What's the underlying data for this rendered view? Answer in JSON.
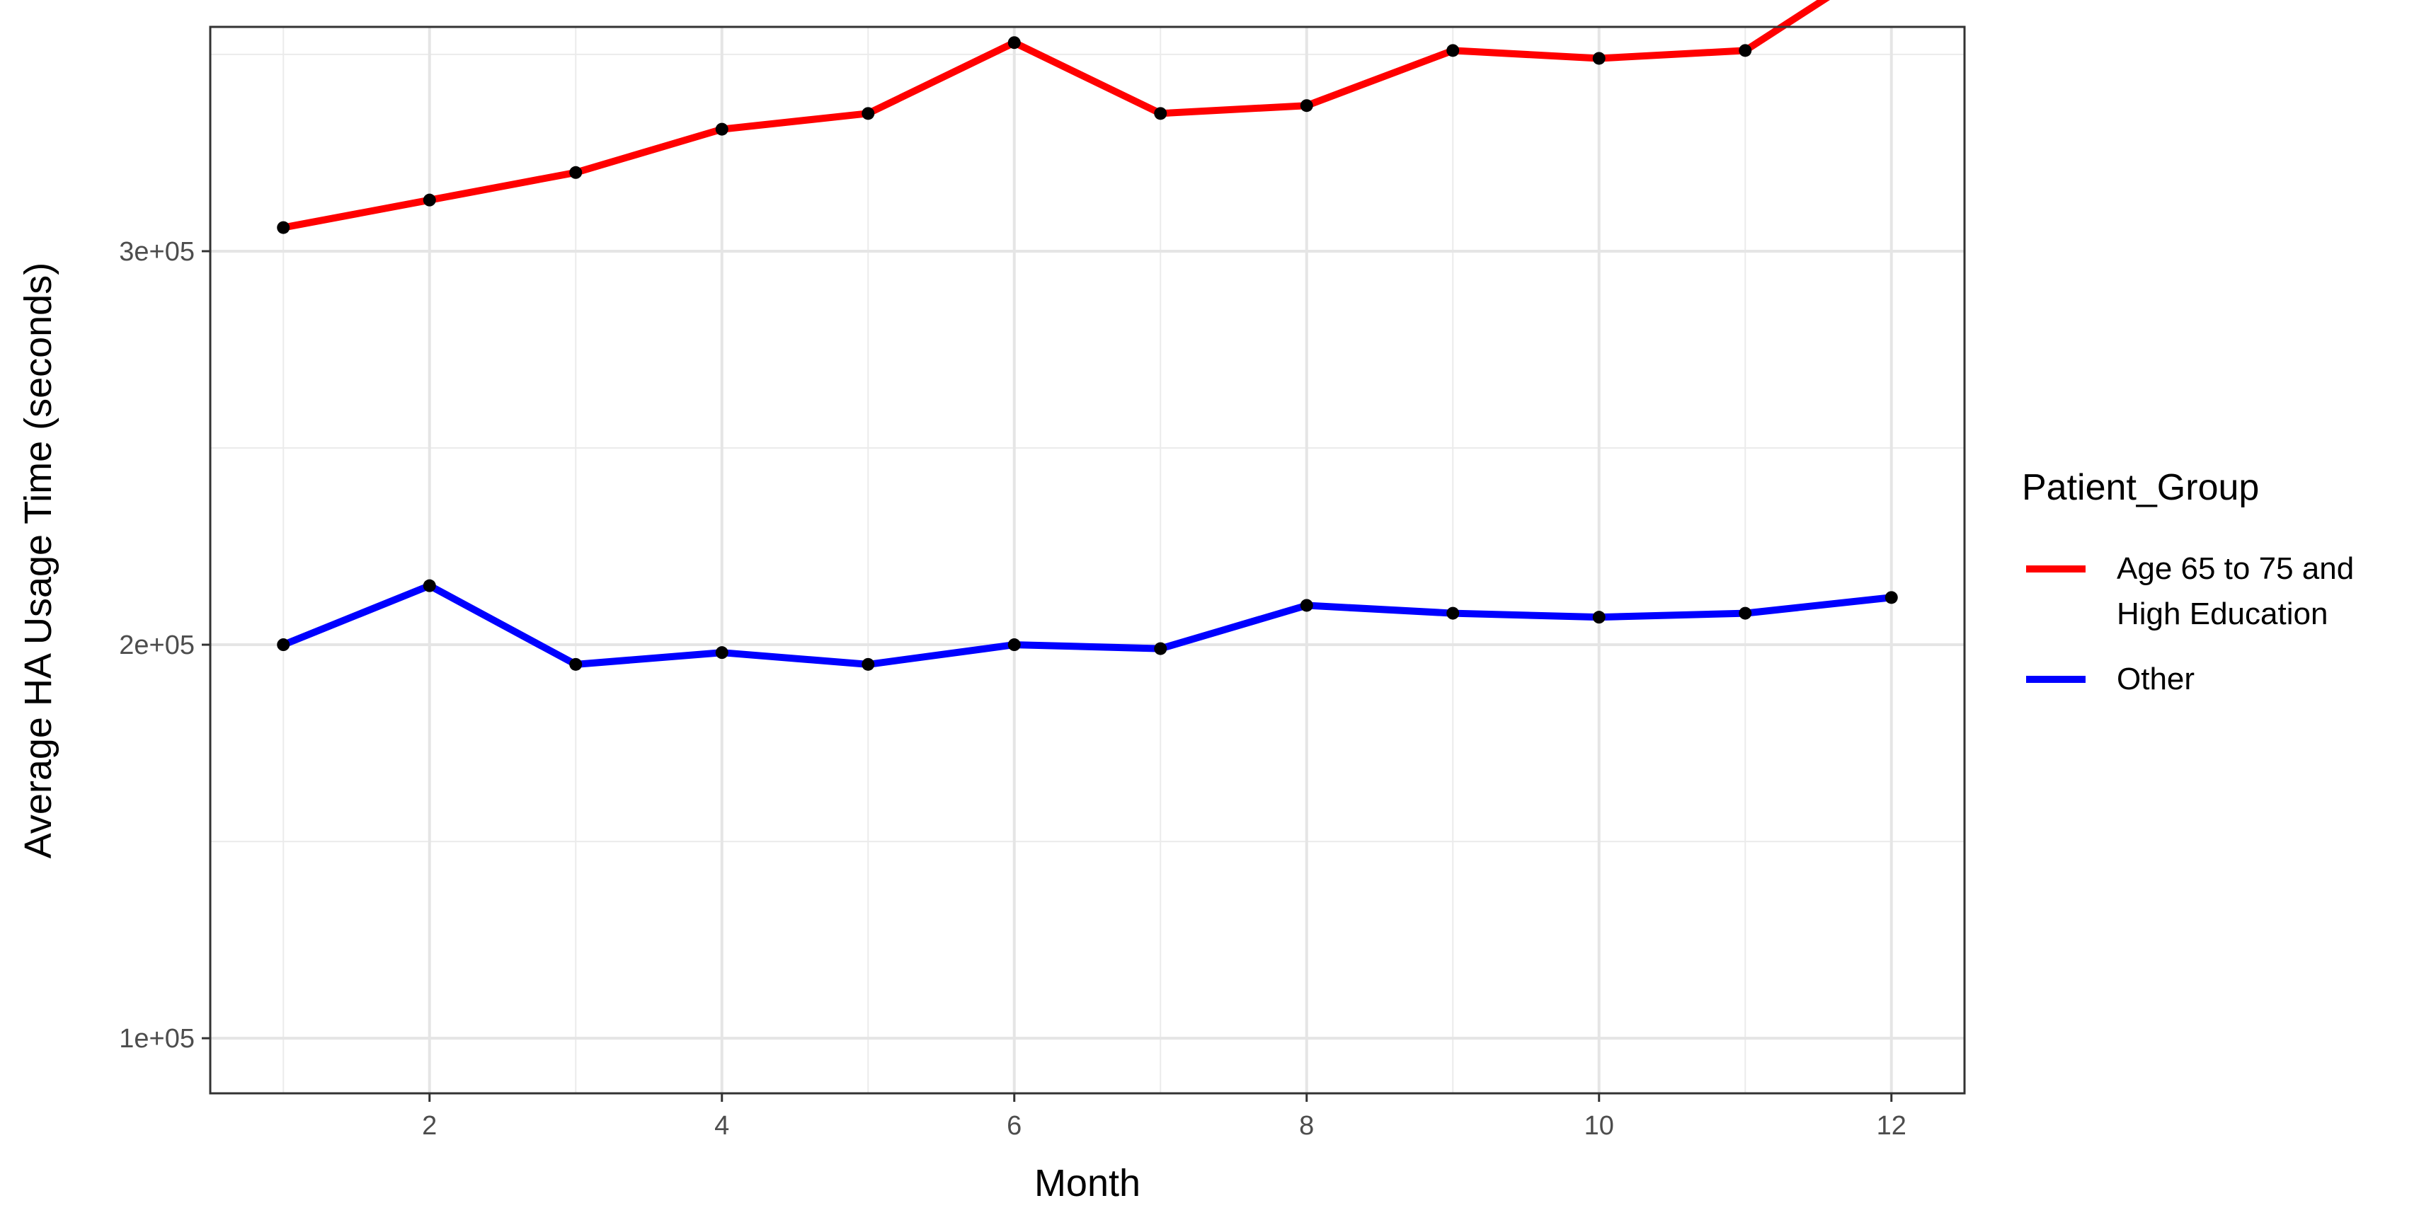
{
  "chart_data": {
    "type": "line",
    "xlabel": "Month",
    "ylabel": "Average HA Usage Time (seconds)",
    "x": [
      1,
      2,
      3,
      4,
      5,
      6,
      7,
      8,
      9,
      10,
      11,
      12
    ],
    "xlim": [
      0.5,
      12.5
    ],
    "ylim": [
      86000,
      357000
    ],
    "x_ticks": [
      2,
      4,
      6,
      8,
      10,
      12
    ],
    "x_tick_labels": [
      "2",
      "4",
      "6",
      "8",
      "10",
      "12"
    ],
    "y_ticks": [
      100000,
      200000,
      300000
    ],
    "y_tick_labels": [
      "1e+05",
      "2e+05",
      "3e+05"
    ],
    "grid": true,
    "point_color": "#000000",
    "legend": {
      "title": "Patient_Group",
      "position": "right",
      "entries": [
        {
          "lines": [
            "Age 65 to 75 and",
            "High Education"
          ],
          "color": "#ff0000"
        },
        {
          "lines": [
            "Other"
          ],
          "color": "#0000ff"
        }
      ]
    },
    "series": [
      {
        "name": "Age 65 to 75 and High Education",
        "color": "#ff0000",
        "values": [
          306000,
          313000,
          320000,
          331000,
          335000,
          353000,
          335000,
          337000,
          351000,
          349000,
          351000,
          375000
        ]
      },
      {
        "name": "Other",
        "color": "#0000ff",
        "values": [
          200000,
          215000,
          195000,
          198000,
          195000,
          200000,
          199000,
          210000,
          208000,
          207000,
          208000,
          212000
        ]
      }
    ]
  }
}
